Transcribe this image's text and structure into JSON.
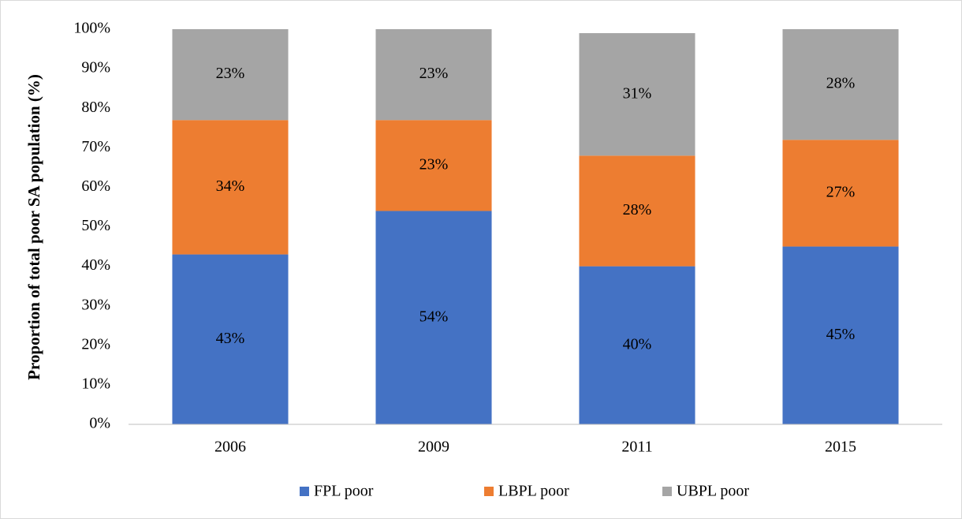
{
  "chart_data": {
    "type": "stacked_bar",
    "y_axis_label": "Proportion of total poor SA population (%)",
    "categories": [
      "2006",
      "2009",
      "2011",
      "2015"
    ],
    "series": [
      {
        "name": "FPL poor",
        "color": "#4472c4",
        "values": [
          43,
          54,
          40,
          45
        ],
        "value_labels": [
          "43%",
          "54%",
          "40%",
          "45%"
        ]
      },
      {
        "name": "LBPL poor",
        "color": "#ed7d31",
        "values": [
          34,
          23,
          28,
          27
        ],
        "value_labels": [
          "34%",
          "23%",
          "28%",
          "27%"
        ]
      },
      {
        "name": "UBPL poor",
        "color": "#a5a5a5",
        "values": [
          23,
          23,
          31,
          28
        ],
        "value_labels": [
          "23%",
          "23%",
          "31%",
          "28%"
        ]
      }
    ],
    "ylim": [
      0,
      100
    ],
    "yticks": [
      {
        "value": 0,
        "label": "0%"
      },
      {
        "value": 10,
        "label": "10%"
      },
      {
        "value": 20,
        "label": "20%"
      },
      {
        "value": 30,
        "label": "30%"
      },
      {
        "value": 40,
        "label": "40%"
      },
      {
        "value": 50,
        "label": "50%"
      },
      {
        "value": 60,
        "label": "60%"
      },
      {
        "value": 70,
        "label": "70%"
      },
      {
        "value": 80,
        "label": "80%"
      },
      {
        "value": 90,
        "label": "90%"
      },
      {
        "value": 100,
        "label": "100%"
      }
    ],
    "grid": false,
    "legend": "bottom"
  }
}
